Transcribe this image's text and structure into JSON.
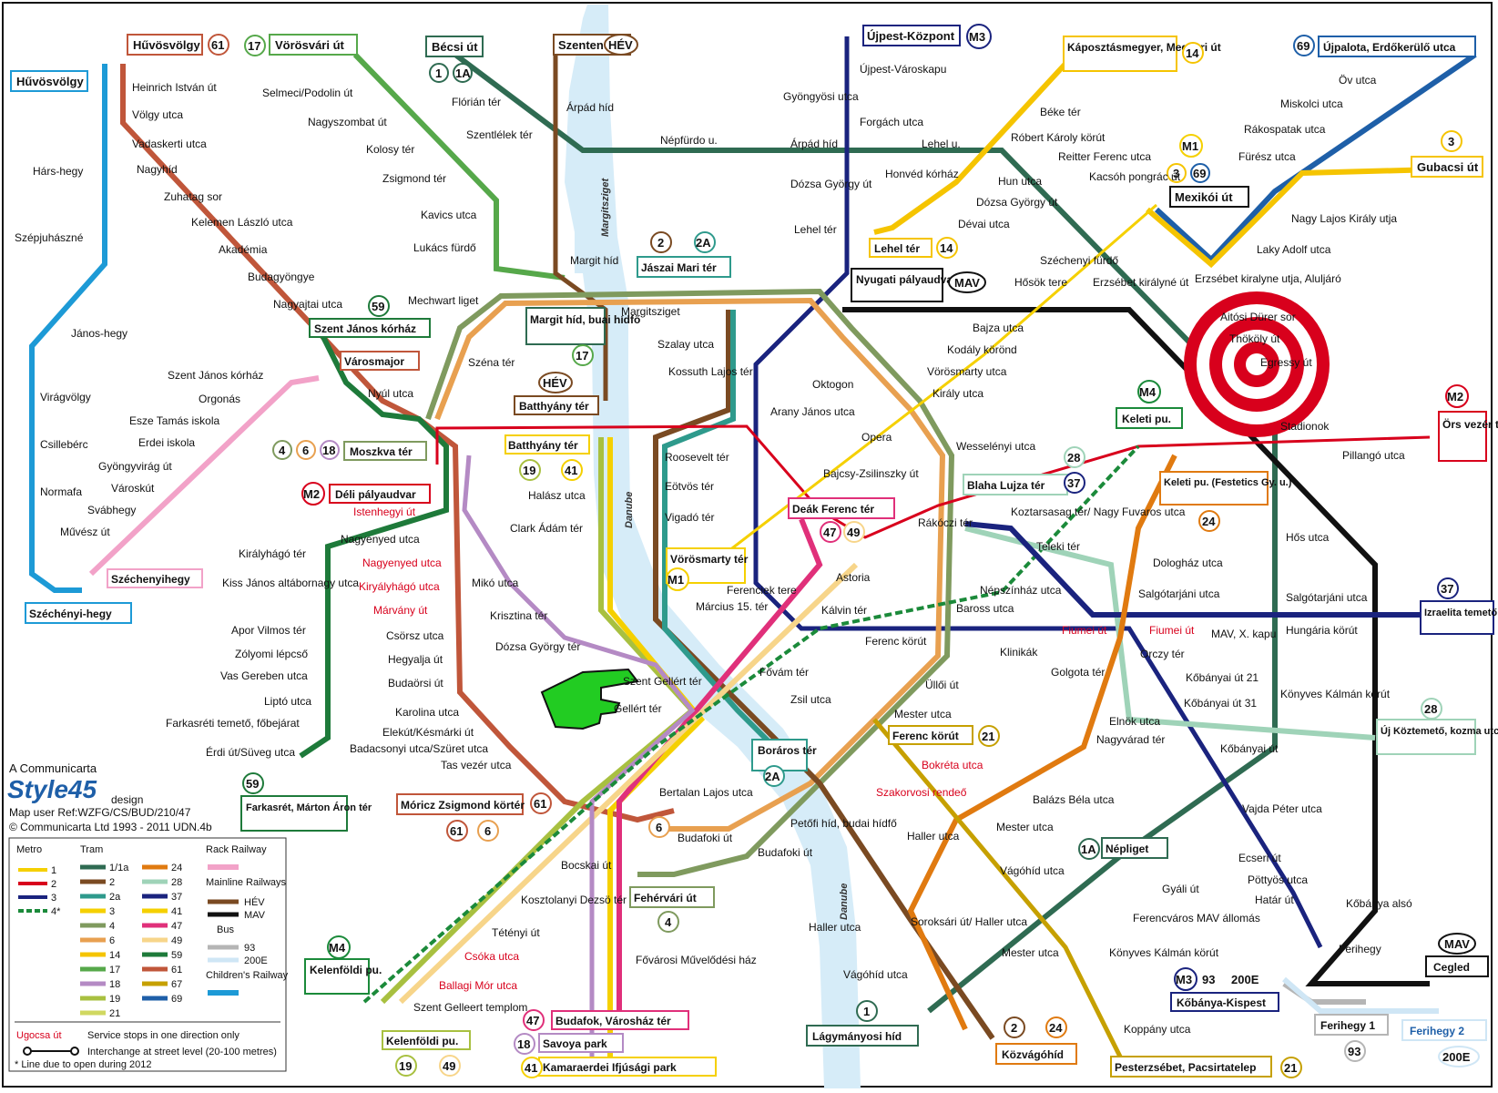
{
  "colors": {
    "metro1": "#f5d000",
    "metro2": "#d8001c",
    "metro3": "#1a237e",
    "metro4": "#1b8a3a",
    "tram1": "#2f6b52",
    "tram2": "#7a4a22",
    "tram2a": "#2e9a8c",
    "tram3": "#f5d000",
    "tram4": "#7f9a5e",
    "tram6": "#e8a050",
    "tram14": "#f5c400",
    "tram17": "#56a84a",
    "tram18": "#b48ac4",
    "tram19": "#a8c040",
    "tram21": "#d0d860",
    "tram24": "#e07a10",
    "tram28": "#9fd3b8",
    "tram37": "#1a237e",
    "tram41": "#f5d000",
    "tram47": "#e0307a",
    "tram49": "#f7d58a",
    "tram59": "#1e7a3a",
    "tram61": "#c0563a",
    "tram67": "#c6a000",
    "tram69": "#1e5fa8",
    "rack": "#f2a2c8",
    "hev": "#7a4a22",
    "mav": "#111111",
    "bus93": "#b5b5b5",
    "bus200e": "#cfe6f5",
    "children": "#1d9ad6",
    "red": "#d8001c",
    "hand": "#22cc22",
    "danube": "#d6ecf8"
  },
  "branding": {
    "company": "A Communicarta",
    "logo": "Style45",
    "logo_suffix": "design",
    "ref": "Map user Ref:WZFG/CS/BUD/210/47",
    "copyright": "© Communicarta Ltd 1993 - 2011 UDN.4b"
  },
  "river": {
    "name1": "Margitsziget",
    "name2": "Danube",
    "name3": "Danube"
  },
  "terminals": {
    "huvosvolgy_tram": "Hűvösvölgy",
    "huvosvolgy_child": "Hűvösvölgy",
    "vorosvari": "Vörösvári út",
    "becsi": "Bécsi út",
    "szentendre": "Szentendre",
    "hev_badge": "HÉV",
    "ujpest": "Újpest-Központ",
    "kaposztas": "Káposztásmegyer, Megyeri út",
    "ujpalota": "Újpalota, Erdőkerülő utca",
    "gubacsi": "Gubacsi út",
    "mexikoi": "Mexikói út",
    "szent_janos": "Szent János kórház",
    "varosmajor": "Városmajor",
    "margit_hid": "Margit híd, buai hídfő",
    "jaszai": "Jászai Mari tér",
    "nyugati": "Nyugati pályaudvar",
    "lehel_ter": "Lehel tér",
    "batthyany_hev": "Batthyány tér",
    "batthyany_tram": "Batthyány tér",
    "moszkva": "Moszkva tér",
    "deli": "Déli pályaudvar",
    "szechenyihegy": "Széchenyihegy",
    "szechenyi_hegy": "Széchényi-hegy",
    "keleti": "Keleti pu.",
    "ors": "Örs vezér tere",
    "blaha": "Blaha Lujza tér",
    "keleti_fest": "Keleti pu. (Festetics Gy. u.)",
    "deak": "Deák Ferenc tér",
    "vorosmarty": "Vörösmarty tér",
    "izraelita": "Izraelita temető",
    "uj_koztemeto": "Új Köztemető, kozma utca",
    "ferenc_korut": "Ferenc körút",
    "boraros": "Boráros tér",
    "moricz": "Móricz Zsigmond körtér",
    "farkasret": "Farkasrét, Márton Áron tér",
    "fehervari": "Fehérvári út",
    "nepliget": "Népliget",
    "kelenfoldi_m4": "Kelenföldi pu.",
    "kelenfoldi": "Kelenföldi pu.",
    "budafok": "Budafok, Városház tér",
    "savoya": "Savoya park",
    "kamaraerdei": "Kamaraerdei Ifjúsági park",
    "lagymanyosi": "Lágymányosi híd",
    "kozvagohid": "Közvágóhíd",
    "pesterzsebet": "Pesterzsébet, Pacsirtatelep",
    "kobanya_kispest": "Kőbánya-Kispest",
    "cegled": "Cegled",
    "ferihegy1": "Ferihegy 1",
    "ferihegy2": "Ferihegy 2",
    "mav": "MAV",
    "M1": "M1",
    "M2": "M2",
    "M3": "M3",
    "M4": "M4"
  },
  "route_numbers": {
    "n61": "61",
    "n17": "17",
    "n1": "1",
    "n1a": "1A",
    "n14": "14",
    "n69": "69",
    "n3": "3",
    "n59": "59",
    "n2": "2",
    "n2a": "2A",
    "n4": "4",
    "n6": "6",
    "n18": "18",
    "n19": "19",
    "n41": "41",
    "n47": "47",
    "n49": "49",
    "n24": "24",
    "n28": "28",
    "n37": "37",
    "n21": "21",
    "n93": "93",
    "n200e": "200E"
  },
  "stations": {
    "s1": "Heinrich István út",
    "s2": "Völgy utca",
    "s3": "Vadaskerti utca",
    "s4": "Nagyhíd",
    "s5": "Zuhatag sor",
    "s6": "Kelemen László utca",
    "s7": "Akadémia",
    "s8": "Budagyöngye",
    "s9": "Nagyajtai utca",
    "s10": "Hárs-hegy",
    "s11": "Szépjuhászné",
    "s12": "János-hegy",
    "s13": "Virágvölgy",
    "s14": "Csillebérc",
    "s15": "Normafa",
    "s16": "Selmeci/Podolin út",
    "s17": "Nagyszombat út",
    "s18": "Kolosy tér",
    "s19": "Zsigmond tér",
    "s20": "Kavics utca",
    "s21": "Lukács fürdő",
    "s22": "Flórián tér",
    "s23": "Szentlélek tér",
    "s24": "Árpád híd",
    "s25": "Népfürdo u.",
    "s26": "Újpest-Városkapu",
    "s27": "Gyöngyösi utca",
    "s28": "Forgách utca",
    "s29": "Árpád híd",
    "s30": "Dózsa György út",
    "s31": "Lehel tér",
    "s32": "Lehel u.",
    "s33": "Honvéd kórház",
    "s34": "Béke tér",
    "s35": "Róbert Károly körút",
    "s36": "Hun utca",
    "s37": "Dózsa György út",
    "s38": "Dévai utca",
    "s39": "Reitter Ferenc utca",
    "s40": "Kacsóh pongrác út",
    "s41": "Öv utca",
    "s42": "Miskolci utca",
    "s43": "Rákospatak utca",
    "s44": "Fürész utca",
    "s45": "Nagy Lajos Király utja",
    "s46": "Laky Adolf utca",
    "s47": "Erzsébet kiralyne utja, Aluljáró",
    "s48": "Széchenyi fürdő",
    "s49": "Hősök tere",
    "s50": "Erzsébet királyné út",
    "s51": "Bajza utca",
    "s52": "Kodály körönd",
    "s53": "Vörösmarty utca",
    "s54": "Oktogon",
    "s55": "Király utca",
    "s56": "Margit híd",
    "s57": "Mechwart liget",
    "s58": "Margitsziget",
    "s59": "Szalay utca",
    "s60": "Kossuth Lajos tér",
    "s61": "Széna tér",
    "s62": "Nyúl utca",
    "s63": "Szent János kórház",
    "s64": "Orgonás",
    "s65": "Esze Tamás iskola",
    "s66": "Erdei iskola",
    "s67": "Gyöngyvirág út",
    "s68": "Városkút",
    "s69": "Svábhegy",
    "s70": "Művész út",
    "s71": "Arany János utca",
    "s72": "Opera",
    "s73": "Bajcsy-Zsilinszky út",
    "s74": "Wesselényi utca",
    "s75": "Roosevelt tér",
    "s76": "Eötvös tér",
    "s77": "Vigadó tér",
    "s78": "Halász utca",
    "s79": "Clark Ádám tér",
    "s80": "Istenhegyi út",
    "s81": "Nagyenyed utca",
    "s82": "Nagyenyed utca",
    "s83": "Királyhágó tér",
    "s84": "Kiryályhágó utca",
    "s85": "Kiss János altábornagy utca",
    "s86": "Márvány út",
    "s87": "Mikó utca",
    "s88": "Krisztina tér",
    "s89": "Csörsz utca",
    "s90": "Dózsa György tér",
    "s91": "Hegyalja út",
    "s92": "Apor Vilmos tér",
    "s93": "Zólyomi lépcső",
    "s94": "Vas Gereben utca",
    "s95": "Budaörsi út",
    "s96": "Liptó utca",
    "s97": "Farkasréti temető, főbejárat",
    "s98": "Karolina utca",
    "s99": "Elekút/Késmárki út",
    "s100": "Badacsonyi utca/Szüret utca",
    "s101": "Tas vezér utca",
    "s102": "Érdi út/Süveg utca",
    "s103": "Ferenciek tere",
    "s104": "Március 15. tér",
    "s105": "Astoria",
    "s106": "Kálvin tér",
    "s107": "Rákóczi tér",
    "s108": "Koztarsasag tér/ Nagy Fuvaros utca",
    "s109": "Teleki tér",
    "s110": "Népszínház utca",
    "s111": "Baross utca",
    "s112": "Dologház utca",
    "s113": "Salgótarjáni utca",
    "s114": "Salgótarjáni utca",
    "s115": "Hős utca",
    "s116": "Hungária körút",
    "s117": "Fiumei út",
    "s118": "Fiumei út",
    "s119": "MAV, X. kapu",
    "s120": "Orczy tér",
    "s121": "Kőbányai út 21",
    "s122": "Kőbányai út 31",
    "s123": "Könyves Kálmán körút",
    "s124": "Kőbányai út",
    "s125": "Stadionok",
    "s126": "Pillangó utca",
    "s127": "Aitósi Dürer sor",
    "s128": "Thököly út",
    "s129": "Egressy út",
    "s130": "Klinikák",
    "s131": "Ferenc körút",
    "s132": "Fővám tér",
    "s133": "Üllői út",
    "s134": "Zsil utca",
    "s135": "Mester utca",
    "s136": "Bokréta utca",
    "s137": "Szakorvosi rendeő",
    "s138": "Golgota tér",
    "s139": "Elnök utca",
    "s140": "Nagyvárad tér",
    "s141": "Balázs Béla utca",
    "s142": "Mester utca",
    "s143": "Haller utca",
    "s144": "Vágóhíd utca",
    "s145": "Vajda Péter utca",
    "s146": "Ecseri út",
    "s147": "Pöttyös utca",
    "s148": "Gyáli út",
    "s149": "Határ út",
    "s150": "Ferencváros MAV állomás",
    "s151": "Kőbánya alsó",
    "s152": "Mester utca",
    "s153": "Könyves Kálmán körút",
    "s154": "Ferihegy",
    "s155": "Soroksári út/ Haller utca",
    "s156": "Haller utca",
    "s157": "Vágóhíd utca",
    "s158": "Koppány utca",
    "s159": "Szent Gellért tér",
    "s160": "Gellért tér",
    "s161": "Bertalan Lajos utca",
    "s162": "Budafoki út",
    "s163": "Petőfi híd, budai hídfő",
    "s164": "Budafoki út",
    "s165": "Bocskai út",
    "s166": "Kosztolanyi Dezsö tér",
    "s167": "Tétényi út",
    "s168": "Csóka utca",
    "s169": "Ballagi Mór utca",
    "s170": "Szent Gelleert templom",
    "s171": "Fővárosi Művelődési ház"
  },
  "legend": {
    "metro_title": "Metro",
    "tram_title": "Tram",
    "rack_title": "Rack Railway",
    "mainline_title": "Mainline Railways",
    "bus_title": "Bus",
    "children_title": "Children's Railway",
    "metro_items": [
      "1",
      "2",
      "3",
      "4*"
    ],
    "tram_col1": [
      "1/1a",
      "2",
      "2a",
      "3",
      "4",
      "6",
      "14",
      "17",
      "18",
      "19",
      "21"
    ],
    "tram_col2": [
      "24",
      "28",
      "37",
      "41",
      "47",
      "49",
      "59",
      "61",
      "67",
      "69"
    ],
    "mainline_items": [
      "HÉV",
      "MAV"
    ],
    "bus_items": [
      "93",
      "200E"
    ],
    "oneway_label": "Ugocsa út",
    "oneway_text": "Service stops in one direction only",
    "interchange_text": "Interchange at street level (20-100 metres)",
    "note": "* Line due to open during 2012"
  }
}
